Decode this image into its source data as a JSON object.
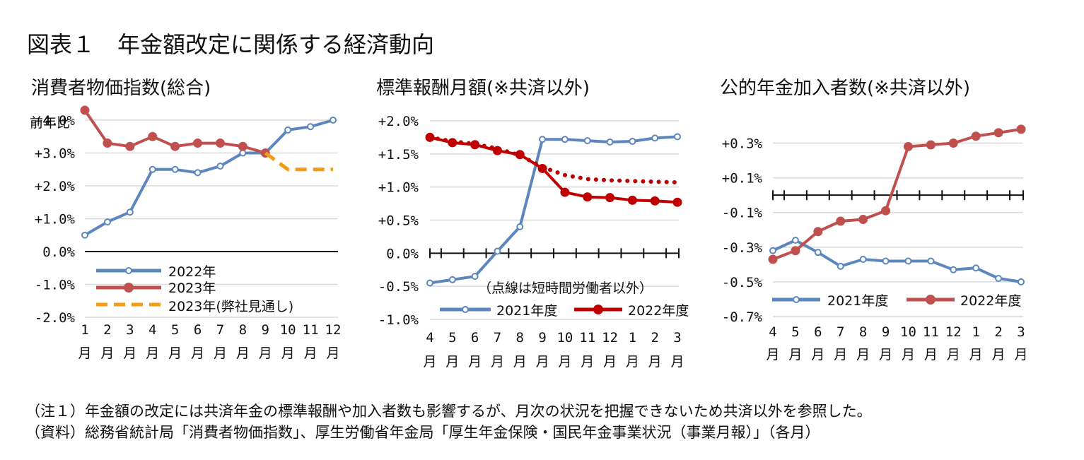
{
  "title": "図表１　年金額改定に関係する経済動向",
  "notes": {
    "note1": "（注１）年金額の改定には共済年金の標準報酬や加入者数も影響するが、月次の状況を把握できないため共済以外を参照した。",
    "note2": "（資料）総務省統計局「消費者物価指数」、厚生労働省年金局「厚生年金保険・国民年金事業状況（事業月報）」（各月）"
  },
  "colors": {
    "blue": "#5b87be",
    "red": "#c0504d",
    "darkred": "#c00000",
    "orange": "#f39c12"
  },
  "chart_data": [
    {
      "type": "line",
      "title": "消費者物価指数(総合)",
      "ylabel": "前年比",
      "ylim": [
        -2.0,
        4.0
      ],
      "yticks": [
        4,
        3,
        2,
        1,
        0,
        -1,
        -2
      ],
      "ytick_labels": [
        "+4.0%",
        "+3.0%",
        "+2.0%",
        "+1.0%",
        "0.0%",
        "-1.0%",
        "-2.0%"
      ],
      "categories": [
        "1",
        "2",
        "3",
        "4",
        "5",
        "6",
        "7",
        "8",
        "9",
        "10",
        "11",
        "12"
      ],
      "category_suffix": "月",
      "grid": true,
      "legend_position": "bottom-left",
      "series": [
        {
          "name": "2022年",
          "color": "#5b87be",
          "style": "solid",
          "marker": "hollow",
          "values": [
            0.5,
            0.9,
            1.2,
            2.5,
            2.5,
            2.4,
            2.6,
            3.0,
            3.0,
            3.7,
            3.8,
            4.0
          ]
        },
        {
          "name": "2023年",
          "color": "#c0504d",
          "style": "solid",
          "marker": "filled",
          "values": [
            4.3,
            3.3,
            3.2,
            3.5,
            3.2,
            3.3,
            3.3,
            3.2,
            3.0,
            null,
            null,
            null
          ]
        },
        {
          "name": "2023年(弊社見通し)",
          "color": "#f39c12",
          "style": "dashed",
          "marker": "none",
          "values": [
            null,
            null,
            null,
            null,
            null,
            null,
            null,
            null,
            3.0,
            2.5,
            2.5,
            2.5
          ]
        }
      ]
    },
    {
      "type": "line",
      "title": "標準報酬月額(※共済以外)",
      "ylim": [
        -1.0,
        2.0
      ],
      "yticks": [
        2,
        1.5,
        1,
        0.5,
        0,
        -0.5,
        -1
      ],
      "ytick_labels": [
        "+2.0%",
        "+1.5%",
        "+1.0%",
        "+0.5%",
        "0.0%",
        "-0.5%",
        "-1.0%"
      ],
      "categories": [
        "4",
        "5",
        "6",
        "7",
        "8",
        "9",
        "10",
        "11",
        "12",
        "1",
        "2",
        "3"
      ],
      "category_suffix": "月",
      "grid": true,
      "legend_position": "bottom",
      "annotation": "（点線は短時間労働者以外）",
      "series": [
        {
          "name": "2021年度",
          "color": "#5b87be",
          "style": "solid",
          "marker": "hollow",
          "values": [
            -0.45,
            -0.4,
            -0.35,
            0.03,
            0.4,
            1.72,
            1.72,
            1.7,
            1.68,
            1.69,
            1.74,
            1.76
          ]
        },
        {
          "name": "2022年度",
          "color": "#c00000",
          "style": "solid",
          "marker": "filled",
          "values": [
            1.75,
            1.67,
            1.64,
            1.55,
            1.49,
            1.28,
            0.92,
            0.85,
            0.84,
            0.8,
            0.79,
            0.77
          ]
        },
        {
          "name": "",
          "color": "#c00000",
          "style": "dotted",
          "marker": "none",
          "values": [
            1.75,
            1.69,
            1.65,
            1.58,
            1.48,
            1.3,
            1.18,
            1.12,
            1.1,
            1.09,
            1.08,
            1.07
          ]
        }
      ]
    },
    {
      "type": "line",
      "title": "公的年金加入者数(※共済以外)",
      "ylim": [
        -0.7,
        0.4
      ],
      "yticks": [
        0.3,
        0.1,
        -0.1,
        -0.3,
        -0.5,
        -0.7
      ],
      "ytick_labels": [
        "+0.3%",
        "+0.1%",
        "-0.1%",
        "-0.3%",
        "-0.5%",
        "-0.7%"
      ],
      "categories": [
        "4",
        "5",
        "6",
        "7",
        "8",
        "9",
        "10",
        "11",
        "12",
        "1",
        "2",
        "3"
      ],
      "category_suffix": "月",
      "grid": true,
      "legend_position": "bottom",
      "series": [
        {
          "name": "2021年度",
          "color": "#5b87be",
          "style": "solid",
          "marker": "hollow",
          "values": [
            -0.32,
            -0.26,
            -0.33,
            -0.41,
            -0.37,
            -0.38,
            -0.38,
            -0.38,
            -0.43,
            -0.42,
            -0.48,
            -0.5
          ]
        },
        {
          "name": "2022年度",
          "color": "#c0504d",
          "style": "solid",
          "marker": "filled",
          "values": [
            -0.37,
            -0.32,
            -0.21,
            -0.15,
            -0.14,
            -0.09,
            0.28,
            0.29,
            0.3,
            0.34,
            0.36,
            0.38
          ]
        }
      ]
    }
  ]
}
